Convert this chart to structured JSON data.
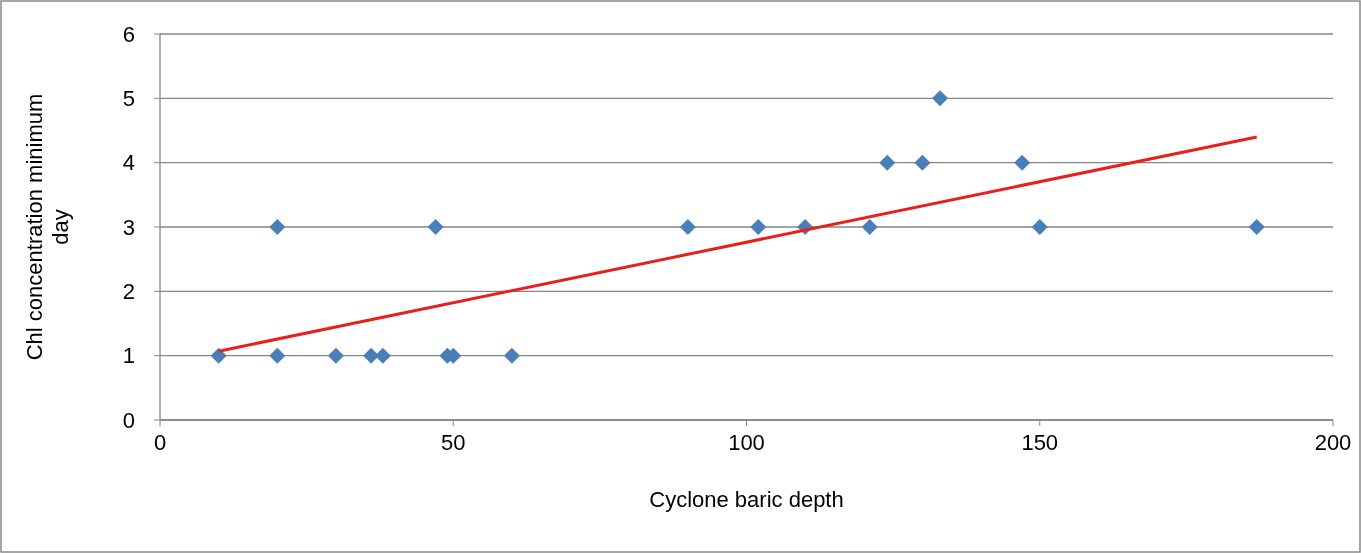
{
  "chart_data": {
    "type": "scatter",
    "xlabel": "Cyclone baric depth",
    "ylabel": "Chl concentration minimum day",
    "xlim": [
      0,
      200
    ],
    "xticks": [
      0,
      50,
      100,
      150,
      200
    ],
    "ylim": [
      0,
      6
    ],
    "yticks": [
      0,
      1,
      2,
      3,
      4,
      5,
      6
    ],
    "grid": "y",
    "series": [
      {
        "marker": "diamond",
        "color": "#4a7ebb",
        "x": [
          10,
          20,
          20,
          30,
          36,
          38,
          47,
          49,
          50,
          60,
          90,
          102,
          110,
          121,
          124,
          130,
          133,
          147,
          150,
          187
        ],
        "values": [
          1,
          3,
          1,
          1,
          1,
          1,
          3,
          1,
          1,
          1,
          3,
          3,
          3,
          3,
          4,
          4,
          5,
          4,
          3,
          3
        ]
      },
      {
        "type": "line",
        "color": "#e8201c",
        "x": [
          10,
          187
        ],
        "values": [
          1.07,
          4.4
        ]
      }
    ]
  }
}
